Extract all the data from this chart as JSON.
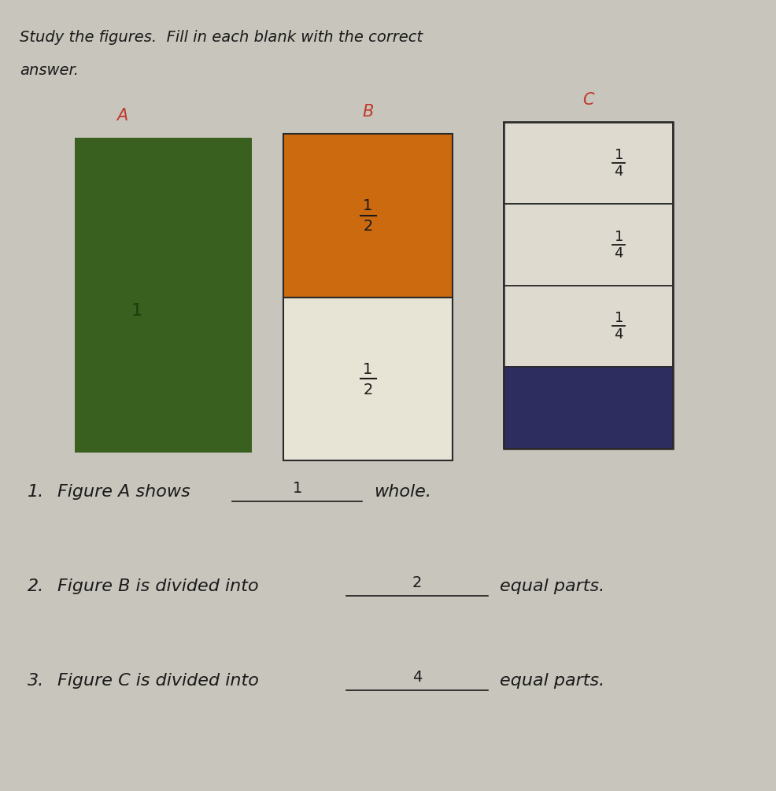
{
  "bg_color": "#c8c5bc",
  "title_line1": "Study the figures.  Fill in each blank with the correct",
  "title_line2": "answer.",
  "fig_A_label": "A",
  "fig_B_label": "B",
  "fig_C_label": "C",
  "label_color": "#c0392b",
  "fig_A_color": "#3a6020",
  "fig_B_top_color": "#cc6a10",
  "fig_B_bot_color": "#e8e4d5",
  "fig_C_top3_color": "#dedad0",
  "fig_C_bot_color": "#2d2d60",
  "border_color": "#2a2a2a",
  "text_color": "#1a1a1a",
  "answer1": "1",
  "answer2": "2",
  "answer3": "4"
}
